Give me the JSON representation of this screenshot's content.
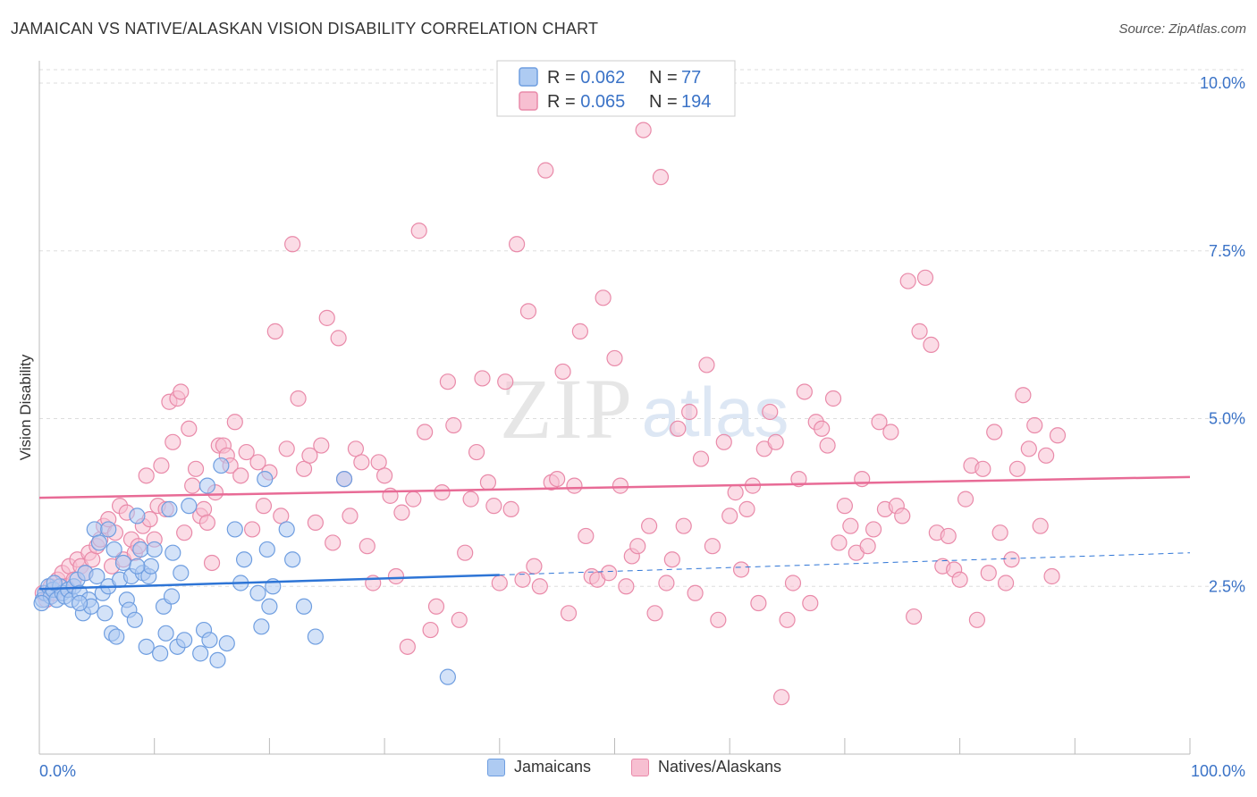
{
  "title": "JAMAICAN VS NATIVE/ALASKAN VISION DISABILITY CORRELATION CHART",
  "source": "Source: ZipAtlas.com",
  "watermark": {
    "zip": "ZIP",
    "atlas": "atlas"
  },
  "colors": {
    "blue_fill": "#aecbf2",
    "blue_stroke": "#6f9ee0",
    "blue_line": "#2e75d6",
    "pink_fill": "#f7bfd1",
    "pink_stroke": "#e98aa9",
    "pink_line": "#e86b96",
    "value_text": "#3b73c7",
    "axis_text": "#333333",
    "grid": "#dddddd"
  },
  "legend_top": [
    {
      "r_label": "R = ",
      "r_value": "0.062",
      "n_label": "N = ",
      "n_value": "77",
      "color": "blue"
    },
    {
      "r_label": "R = ",
      "r_value": "0.065",
      "n_label": "N = ",
      "n_value": "194",
      "color": "pink"
    }
  ],
  "legend_bottom": [
    {
      "label": "Jamaicans",
      "color": "blue"
    },
    {
      "label": "Natives/Alaskans",
      "color": "pink"
    }
  ],
  "chart_data": {
    "type": "scatter",
    "title": "JAMAICAN VS NATIVE/ALASKAN VISION DISABILITY CORRELATION CHART",
    "xlabel": "",
    "ylabel": "Vision Disability",
    "xlim": [
      0,
      100
    ],
    "ylim": [
      0,
      10.2
    ],
    "x_tick_labels": [
      "0.0%",
      "100.0%"
    ],
    "y_ticks": [
      2.5,
      5.0,
      7.5,
      10.0
    ],
    "y_tick_labels": [
      "2.5%",
      "5.0%",
      "7.5%",
      "10.0%"
    ],
    "grid": true,
    "legend_position": "top-center",
    "series": [
      {
        "name": "Jamaicans",
        "r": 0.062,
        "n": 77,
        "trend": {
          "x0": 0,
          "y0": 2.46,
          "x1": 40,
          "y1": 2.67,
          "dashed_to": 100,
          "y_end": 3.0
        },
        "points": [
          [
            0.3,
            2.3
          ],
          [
            0.5,
            2.4
          ],
          [
            0.8,
            2.5
          ],
          [
            1.0,
            2.35
          ],
          [
            1.2,
            2.45
          ],
          [
            1.5,
            2.3
          ],
          [
            1.8,
            2.5
          ],
          [
            2.0,
            2.4
          ],
          [
            2.2,
            2.35
          ],
          [
            2.5,
            2.45
          ],
          [
            2.8,
            2.3
          ],
          [
            3.0,
            2.5
          ],
          [
            3.3,
            2.6
          ],
          [
            3.5,
            2.4
          ],
          [
            3.8,
            2.1
          ],
          [
            4.0,
            2.7
          ],
          [
            4.3,
            2.3
          ],
          [
            4.5,
            2.2
          ],
          [
            4.8,
            3.35
          ],
          [
            5.0,
            2.65
          ],
          [
            5.2,
            3.15
          ],
          [
            5.5,
            2.4
          ],
          [
            5.7,
            2.1
          ],
          [
            6.0,
            2.5
          ],
          [
            6.3,
            1.8
          ],
          [
            6.5,
            3.05
          ],
          [
            6.7,
            1.75
          ],
          [
            7.0,
            2.6
          ],
          [
            7.3,
            2.85
          ],
          [
            7.6,
            2.3
          ],
          [
            7.8,
            2.15
          ],
          [
            8.0,
            2.65
          ],
          [
            8.3,
            2.0
          ],
          [
            8.5,
            3.55
          ],
          [
            8.8,
            3.05
          ],
          [
            9.0,
            2.7
          ],
          [
            9.3,
            1.6
          ],
          [
            9.5,
            2.65
          ],
          [
            9.7,
            2.8
          ],
          [
            10.0,
            3.05
          ],
          [
            10.5,
            1.5
          ],
          [
            10.8,
            2.2
          ],
          [
            11.0,
            1.8
          ],
          [
            11.3,
            3.65
          ],
          [
            11.6,
            3.0
          ],
          [
            12.0,
            1.6
          ],
          [
            12.3,
            2.7
          ],
          [
            12.6,
            1.7
          ],
          [
            13.0,
            3.7
          ],
          [
            14.0,
            1.5
          ],
          [
            14.3,
            1.85
          ],
          [
            14.6,
            4.0
          ],
          [
            14.8,
            1.7
          ],
          [
            15.5,
            1.4
          ],
          [
            15.8,
            4.3
          ],
          [
            16.3,
            1.65
          ],
          [
            17.0,
            3.35
          ],
          [
            17.5,
            2.55
          ],
          [
            17.8,
            2.9
          ],
          [
            19.0,
            2.4
          ],
          [
            19.3,
            1.9
          ],
          [
            19.6,
            4.1
          ],
          [
            19.8,
            3.05
          ],
          [
            20.0,
            2.2
          ],
          [
            20.3,
            2.5
          ],
          [
            21.5,
            3.35
          ],
          [
            22.0,
            2.9
          ],
          [
            23.0,
            2.2
          ],
          [
            24.0,
            1.75
          ],
          [
            26.5,
            4.1
          ],
          [
            35.5,
            1.15
          ],
          [
            8.5,
            2.8
          ],
          [
            3.5,
            2.25
          ],
          [
            1.3,
            2.55
          ],
          [
            6.0,
            3.35
          ],
          [
            11.5,
            2.35
          ],
          [
            0.2,
            2.25
          ]
        ]
      },
      {
        "name": "Natives/Alaskans",
        "r": 0.065,
        "n": 194,
        "trend": {
          "x0": 0,
          "y0": 3.82,
          "x1": 100,
          "y1": 4.13
        },
        "points": [
          [
            0.3,
            2.4
          ],
          [
            0.6,
            2.3
          ],
          [
            1.0,
            2.5
          ],
          [
            1.3,
            2.4
          ],
          [
            1.6,
            2.6
          ],
          [
            2.0,
            2.7
          ],
          [
            2.3,
            2.5
          ],
          [
            2.6,
            2.8
          ],
          [
            3.0,
            2.6
          ],
          [
            3.3,
            2.9
          ],
          [
            3.6,
            2.8
          ],
          [
            4.0,
            2.7
          ],
          [
            4.3,
            3.0
          ],
          [
            4.6,
            2.9
          ],
          [
            5.0,
            3.1
          ],
          [
            5.3,
            3.2
          ],
          [
            5.6,
            3.4
          ],
          [
            6.0,
            3.5
          ],
          [
            6.3,
            2.8
          ],
          [
            6.6,
            3.3
          ],
          [
            7.0,
            3.7
          ],
          [
            7.3,
            2.9
          ],
          [
            7.6,
            3.6
          ],
          [
            8.0,
            3.2
          ],
          [
            8.3,
            3.0
          ],
          [
            8.6,
            3.1
          ],
          [
            9.0,
            3.4
          ],
          [
            9.3,
            4.15
          ],
          [
            9.6,
            3.5
          ],
          [
            10.0,
            3.2
          ],
          [
            10.3,
            3.7
          ],
          [
            10.6,
            4.3
          ],
          [
            11.0,
            3.65
          ],
          [
            11.3,
            5.25
          ],
          [
            11.6,
            4.65
          ],
          [
            12.0,
            5.3
          ],
          [
            12.3,
            5.4
          ],
          [
            12.6,
            3.3
          ],
          [
            13.0,
            4.85
          ],
          [
            13.3,
            4.0
          ],
          [
            13.6,
            4.25
          ],
          [
            14.0,
            3.55
          ],
          [
            14.3,
            3.65
          ],
          [
            14.6,
            3.45
          ],
          [
            15.0,
            2.85
          ],
          [
            15.3,
            3.9
          ],
          [
            15.6,
            4.6
          ],
          [
            16.0,
            4.6
          ],
          [
            16.3,
            4.45
          ],
          [
            16.6,
            4.3
          ],
          [
            17.0,
            4.95
          ],
          [
            17.5,
            4.15
          ],
          [
            18.0,
            4.5
          ],
          [
            18.5,
            3.35
          ],
          [
            19.0,
            4.35
          ],
          [
            19.5,
            3.7
          ],
          [
            20.0,
            4.2
          ],
          [
            20.5,
            6.3
          ],
          [
            21.0,
            3.55
          ],
          [
            21.5,
            4.55
          ],
          [
            22.0,
            7.6
          ],
          [
            22.5,
            5.3
          ],
          [
            23.0,
            4.25
          ],
          [
            23.5,
            4.45
          ],
          [
            24.0,
            3.45
          ],
          [
            24.5,
            4.6
          ],
          [
            25.0,
            6.5
          ],
          [
            25.5,
            3.15
          ],
          [
            26.0,
            6.2
          ],
          [
            26.5,
            4.1
          ],
          [
            27.0,
            3.55
          ],
          [
            27.5,
            4.55
          ],
          [
            28.0,
            4.35
          ],
          [
            28.5,
            3.1
          ],
          [
            29.0,
            2.55
          ],
          [
            29.5,
            4.35
          ],
          [
            30.0,
            4.15
          ],
          [
            30.5,
            3.85
          ],
          [
            31.0,
            2.65
          ],
          [
            31.5,
            3.6
          ],
          [
            32.0,
            1.6
          ],
          [
            32.5,
            3.8
          ],
          [
            33.0,
            7.8
          ],
          [
            33.5,
            4.8
          ],
          [
            34.0,
            1.85
          ],
          [
            34.5,
            2.2
          ],
          [
            35.0,
            3.9
          ],
          [
            35.5,
            5.55
          ],
          [
            36.0,
            4.9
          ],
          [
            36.5,
            2.0
          ],
          [
            37.0,
            3.0
          ],
          [
            37.5,
            3.8
          ],
          [
            38.0,
            4.5
          ],
          [
            38.5,
            5.6
          ],
          [
            39.0,
            4.05
          ],
          [
            39.5,
            3.7
          ],
          [
            40.0,
            2.55
          ],
          [
            40.5,
            5.55
          ],
          [
            41.0,
            3.65
          ],
          [
            41.5,
            7.6
          ],
          [
            42.0,
            2.6
          ],
          [
            42.5,
            6.6
          ],
          [
            43.0,
            2.8
          ],
          [
            43.5,
            2.5
          ],
          [
            44.0,
            8.7
          ],
          [
            44.5,
            4.05
          ],
          [
            45.0,
            4.1
          ],
          [
            45.5,
            5.7
          ],
          [
            46.0,
            2.1
          ],
          [
            46.5,
            4.0
          ],
          [
            47.0,
            6.3
          ],
          [
            47.5,
            3.25
          ],
          [
            48.0,
            2.65
          ],
          [
            48.5,
            2.6
          ],
          [
            49.0,
            6.8
          ],
          [
            49.5,
            2.7
          ],
          [
            50.0,
            5.9
          ],
          [
            50.5,
            4.0
          ],
          [
            51.0,
            2.5
          ],
          [
            51.5,
            2.95
          ],
          [
            52.0,
            3.1
          ],
          [
            52.5,
            9.3
          ],
          [
            53.0,
            3.4
          ],
          [
            53.5,
            2.1
          ],
          [
            54.0,
            8.6
          ],
          [
            54.5,
            2.55
          ],
          [
            55.0,
            2.9
          ],
          [
            55.5,
            4.85
          ],
          [
            56.0,
            3.4
          ],
          [
            56.5,
            5.1
          ],
          [
            57.0,
            2.4
          ],
          [
            57.5,
            4.4
          ],
          [
            58.0,
            5.8
          ],
          [
            58.5,
            3.1
          ],
          [
            59.0,
            2.0
          ],
          [
            59.5,
            4.65
          ],
          [
            60.0,
            3.55
          ],
          [
            60.5,
            3.9
          ],
          [
            61.0,
            2.75
          ],
          [
            61.5,
            3.65
          ],
          [
            62.0,
            4.0
          ],
          [
            62.5,
            2.25
          ],
          [
            63.0,
            4.55
          ],
          [
            63.5,
            5.1
          ],
          [
            64.0,
            4.65
          ],
          [
            64.5,
            0.85
          ],
          [
            65.0,
            2.0
          ],
          [
            65.5,
            2.55
          ],
          [
            66.0,
            4.1
          ],
          [
            66.5,
            5.4
          ],
          [
            67.0,
            2.25
          ],
          [
            67.5,
            4.95
          ],
          [
            68.0,
            4.85
          ],
          [
            68.5,
            4.6
          ],
          [
            69.0,
            5.3
          ],
          [
            69.5,
            3.15
          ],
          [
            70.0,
            3.7
          ],
          [
            70.5,
            3.4
          ],
          [
            71.0,
            3.0
          ],
          [
            71.5,
            4.1
          ],
          [
            72.0,
            3.1
          ],
          [
            72.5,
            3.35
          ],
          [
            73.0,
            4.95
          ],
          [
            73.5,
            3.65
          ],
          [
            74.0,
            4.8
          ],
          [
            74.5,
            3.7
          ],
          [
            75.0,
            3.55
          ],
          [
            75.5,
            7.05
          ],
          [
            76.0,
            2.05
          ],
          [
            76.5,
            6.3
          ],
          [
            77.0,
            7.1
          ],
          [
            77.5,
            6.1
          ],
          [
            78.0,
            3.3
          ],
          [
            78.5,
            2.8
          ],
          [
            79.0,
            3.25
          ],
          [
            79.5,
            2.75
          ],
          [
            80.0,
            2.6
          ],
          [
            80.5,
            3.8
          ],
          [
            81.0,
            4.3
          ],
          [
            81.5,
            2.0
          ],
          [
            82.0,
            4.25
          ],
          [
            82.5,
            2.7
          ],
          [
            83.0,
            4.8
          ],
          [
            83.5,
            3.3
          ],
          [
            84.0,
            2.55
          ],
          [
            84.5,
            2.9
          ],
          [
            85.0,
            4.25
          ],
          [
            85.5,
            5.35
          ],
          [
            86.0,
            4.55
          ],
          [
            86.5,
            4.9
          ],
          [
            87.0,
            3.4
          ],
          [
            87.5,
            4.45
          ],
          [
            88.0,
            2.65
          ],
          [
            88.5,
            4.75
          ]
        ]
      }
    ]
  }
}
